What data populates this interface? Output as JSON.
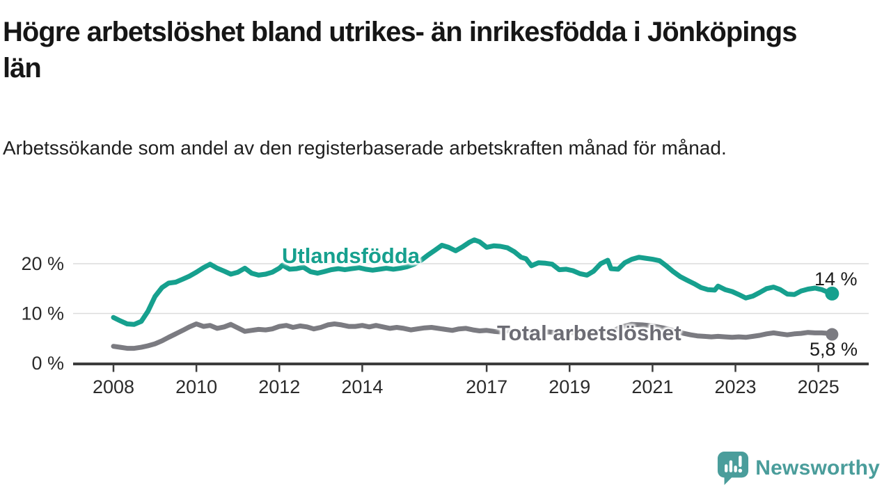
{
  "title": "Högre arbetslöshet bland utrikes- än inrikesfödda i Jönköpings län",
  "subtitle": "Arbetssökande som andel av den registerbaserade arbetskraften månad för månad.",
  "branding": {
    "wordmark": "Newsworthy",
    "logo_icon": "newsworthy-speech-bubble-bar-chart-icon",
    "brand_color": "#4a9d9b"
  },
  "colors": {
    "series_foreign_born": "#16a08e",
    "series_total": "#7b7b81",
    "gridline": "#dcdcdc",
    "axis": "#3d3d3d",
    "tick_label": "#2b2b2b"
  },
  "chart_data": {
    "type": "line",
    "title": "Högre arbetslöshet bland utrikes- än inrikesfödda i Jönköpings län",
    "subtitle": "Arbetssökande som andel av den registerbaserade arbetskraften månad för månad.",
    "grid": "horizontal",
    "legend_position": "inline-labels",
    "x_axis": {
      "ticks": [
        2008,
        2010,
        2012,
        2014,
        2017,
        2019,
        2021,
        2023,
        2025
      ],
      "range": [
        2007.0,
        2026.2
      ]
    },
    "y_axis": {
      "ticks": [
        0,
        10,
        20
      ],
      "suffix": " %",
      "range": [
        0,
        27
      ]
    },
    "series": [
      {
        "name": "Utlandsfödda",
        "end_label": "14 %",
        "end_value": 14.0,
        "color": "#16a08e",
        "points": [
          [
            2008.0,
            9.2
          ],
          [
            2008.17,
            8.5
          ],
          [
            2008.33,
            7.9
          ],
          [
            2008.5,
            7.8
          ],
          [
            2008.67,
            8.4
          ],
          [
            2008.83,
            10.4
          ],
          [
            2009.0,
            13.4
          ],
          [
            2009.17,
            15.2
          ],
          [
            2009.33,
            16.1
          ],
          [
            2009.5,
            16.3
          ],
          [
            2009.67,
            16.9
          ],
          [
            2009.83,
            17.5
          ],
          [
            2010.0,
            18.3
          ],
          [
            2010.17,
            19.2
          ],
          [
            2010.33,
            19.9
          ],
          [
            2010.5,
            19.1
          ],
          [
            2010.67,
            18.5
          ],
          [
            2010.83,
            17.9
          ],
          [
            2011.0,
            18.3
          ],
          [
            2011.17,
            19.1
          ],
          [
            2011.33,
            18.1
          ],
          [
            2011.5,
            17.7
          ],
          [
            2011.67,
            17.9
          ],
          [
            2011.83,
            18.3
          ],
          [
            2012.0,
            19.1
          ],
          [
            2012.08,
            19.7
          ],
          [
            2012.25,
            18.9
          ],
          [
            2012.42,
            19.0
          ],
          [
            2012.58,
            19.3
          ],
          [
            2012.75,
            18.4
          ],
          [
            2012.92,
            18.1
          ],
          [
            2013.08,
            18.4
          ],
          [
            2013.25,
            18.8
          ],
          [
            2013.42,
            19.0
          ],
          [
            2013.58,
            18.8
          ],
          [
            2013.75,
            19.0
          ],
          [
            2013.92,
            19.2
          ],
          [
            2014.08,
            18.9
          ],
          [
            2014.25,
            18.7
          ],
          [
            2014.42,
            18.9
          ],
          [
            2014.58,
            19.1
          ],
          [
            2014.75,
            18.9
          ],
          [
            2014.92,
            19.1
          ],
          [
            2015.08,
            19.4
          ],
          [
            2015.25,
            19.9
          ],
          [
            2015.42,
            20.7
          ],
          [
            2015.58,
            21.7
          ],
          [
            2015.75,
            22.7
          ],
          [
            2015.92,
            23.7
          ],
          [
            2016.08,
            23.3
          ],
          [
            2016.25,
            22.6
          ],
          [
            2016.42,
            23.4
          ],
          [
            2016.58,
            24.3
          ],
          [
            2016.7,
            24.8
          ],
          [
            2016.83,
            24.4
          ],
          [
            2017.0,
            23.3
          ],
          [
            2017.17,
            23.6
          ],
          [
            2017.33,
            23.5
          ],
          [
            2017.5,
            23.2
          ],
          [
            2017.67,
            22.4
          ],
          [
            2017.83,
            21.3
          ],
          [
            2017.95,
            21.0
          ],
          [
            2018.08,
            19.6
          ],
          [
            2018.25,
            20.2
          ],
          [
            2018.42,
            20.1
          ],
          [
            2018.58,
            19.9
          ],
          [
            2018.75,
            18.8
          ],
          [
            2018.92,
            18.9
          ],
          [
            2019.08,
            18.6
          ],
          [
            2019.25,
            18.0
          ],
          [
            2019.42,
            17.7
          ],
          [
            2019.58,
            18.5
          ],
          [
            2019.75,
            20.0
          ],
          [
            2019.92,
            20.7
          ],
          [
            2020.0,
            19.0
          ],
          [
            2020.17,
            18.9
          ],
          [
            2020.33,
            20.2
          ],
          [
            2020.5,
            20.9
          ],
          [
            2020.67,
            21.3
          ],
          [
            2020.83,
            21.1
          ],
          [
            2021.0,
            20.9
          ],
          [
            2021.17,
            20.6
          ],
          [
            2021.33,
            19.6
          ],
          [
            2021.5,
            18.4
          ],
          [
            2021.67,
            17.4
          ],
          [
            2021.83,
            16.7
          ],
          [
            2022.0,
            16.0
          ],
          [
            2022.17,
            15.2
          ],
          [
            2022.33,
            14.8
          ],
          [
            2022.5,
            14.7
          ],
          [
            2022.58,
            15.5
          ],
          [
            2022.75,
            14.8
          ],
          [
            2022.92,
            14.4
          ],
          [
            2023.08,
            13.8
          ],
          [
            2023.25,
            13.1
          ],
          [
            2023.42,
            13.5
          ],
          [
            2023.58,
            14.2
          ],
          [
            2023.75,
            15.0
          ],
          [
            2023.92,
            15.3
          ],
          [
            2024.08,
            14.8
          ],
          [
            2024.25,
            13.9
          ],
          [
            2024.42,
            13.8
          ],
          [
            2024.58,
            14.5
          ],
          [
            2024.75,
            14.9
          ],
          [
            2024.92,
            15.1
          ],
          [
            2025.08,
            14.8
          ],
          [
            2025.25,
            14.2
          ],
          [
            2025.33,
            14.0
          ]
        ]
      },
      {
        "name": "Total arbetslöshet",
        "end_label": "5,8 %",
        "end_value": 5.8,
        "color": "#7b7b81",
        "points": [
          [
            2008.0,
            3.4
          ],
          [
            2008.17,
            3.2
          ],
          [
            2008.33,
            3.0
          ],
          [
            2008.5,
            3.0
          ],
          [
            2008.67,
            3.2
          ],
          [
            2008.83,
            3.5
          ],
          [
            2009.0,
            3.9
          ],
          [
            2009.17,
            4.5
          ],
          [
            2009.33,
            5.2
          ],
          [
            2009.5,
            5.9
          ],
          [
            2009.67,
            6.6
          ],
          [
            2009.83,
            7.3
          ],
          [
            2010.0,
            7.9
          ],
          [
            2010.17,
            7.4
          ],
          [
            2010.33,
            7.6
          ],
          [
            2010.5,
            7.0
          ],
          [
            2010.67,
            7.3
          ],
          [
            2010.83,
            7.8
          ],
          [
            2011.0,
            7.1
          ],
          [
            2011.17,
            6.4
          ],
          [
            2011.33,
            6.6
          ],
          [
            2011.5,
            6.8
          ],
          [
            2011.67,
            6.7
          ],
          [
            2011.83,
            6.9
          ],
          [
            2012.0,
            7.4
          ],
          [
            2012.17,
            7.6
          ],
          [
            2012.33,
            7.2
          ],
          [
            2012.5,
            7.5
          ],
          [
            2012.67,
            7.3
          ],
          [
            2012.83,
            6.9
          ],
          [
            2013.0,
            7.2
          ],
          [
            2013.17,
            7.7
          ],
          [
            2013.33,
            7.9
          ],
          [
            2013.5,
            7.7
          ],
          [
            2013.67,
            7.4
          ],
          [
            2013.83,
            7.4
          ],
          [
            2014.0,
            7.6
          ],
          [
            2014.17,
            7.3
          ],
          [
            2014.33,
            7.6
          ],
          [
            2014.5,
            7.3
          ],
          [
            2014.67,
            7.0
          ],
          [
            2014.83,
            7.2
          ],
          [
            2015.0,
            7.0
          ],
          [
            2015.17,
            6.7
          ],
          [
            2015.33,
            6.9
          ],
          [
            2015.5,
            7.1
          ],
          [
            2015.67,
            7.2
          ],
          [
            2015.83,
            7.0
          ],
          [
            2016.0,
            6.8
          ],
          [
            2016.17,
            6.6
          ],
          [
            2016.33,
            6.9
          ],
          [
            2016.5,
            7.0
          ],
          [
            2016.67,
            6.7
          ],
          [
            2016.83,
            6.5
          ],
          [
            2017.0,
            6.6
          ],
          [
            2017.17,
            6.4
          ],
          [
            2017.33,
            6.3
          ],
          [
            2017.5,
            6.5
          ],
          [
            2017.75,
            6.3
          ],
          [
            2018.0,
            6.4
          ],
          [
            2018.25,
            6.2
          ],
          [
            2018.5,
            6.3
          ],
          [
            2018.75,
            6.1
          ],
          [
            2019.0,
            6.2
          ],
          [
            2019.25,
            6.1
          ],
          [
            2019.5,
            6.3
          ],
          [
            2019.75,
            6.4
          ],
          [
            2020.0,
            6.3
          ],
          [
            2020.25,
            7.3
          ],
          [
            2020.5,
            7.8
          ],
          [
            2020.75,
            7.7
          ],
          [
            2021.0,
            7.5
          ],
          [
            2021.25,
            7.1
          ],
          [
            2021.5,
            6.6
          ],
          [
            2021.75,
            6.0
          ],
          [
            2021.92,
            5.7
          ],
          [
            2022.08,
            5.5
          ],
          [
            2022.25,
            5.4
          ],
          [
            2022.42,
            5.3
          ],
          [
            2022.58,
            5.4
          ],
          [
            2022.75,
            5.3
          ],
          [
            2022.92,
            5.2
          ],
          [
            2023.08,
            5.3
          ],
          [
            2023.25,
            5.2
          ],
          [
            2023.42,
            5.4
          ],
          [
            2023.58,
            5.6
          ],
          [
            2023.75,
            5.9
          ],
          [
            2023.92,
            6.1
          ],
          [
            2024.08,
            5.9
          ],
          [
            2024.25,
            5.7
          ],
          [
            2024.42,
            5.9
          ],
          [
            2024.58,
            6.0
          ],
          [
            2024.75,
            6.2
          ],
          [
            2024.92,
            6.1
          ],
          [
            2025.08,
            6.1
          ],
          [
            2025.25,
            6.0
          ],
          [
            2025.33,
            5.8
          ]
        ]
      }
    ]
  }
}
